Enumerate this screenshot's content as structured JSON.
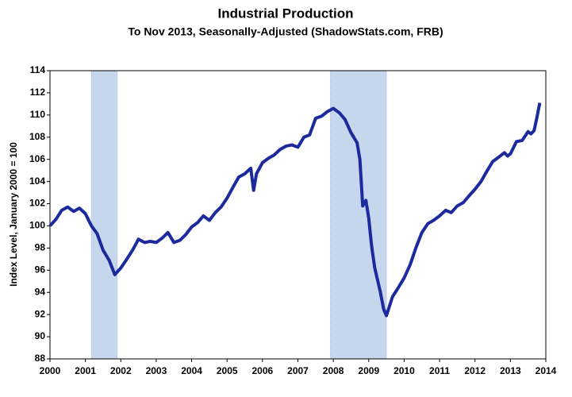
{
  "chart_data": {
    "type": "line",
    "title": "Industrial Production",
    "subtitle": "To Nov 2013, Seasonally-Adjusted (ShadowStats.com, FRB)",
    "y_label": "Index Level, January 2000 = 100",
    "xlim": [
      2000,
      2014
    ],
    "ylim": [
      88,
      114
    ],
    "xticks": [
      2000,
      2001,
      2002,
      2003,
      2004,
      2005,
      2006,
      2007,
      2008,
      2009,
      2010,
      2011,
      2012,
      2013,
      2014
    ],
    "yticks": [
      88,
      90,
      92,
      94,
      96,
      98,
      100,
      102,
      104,
      106,
      108,
      110,
      112,
      114
    ],
    "grid": false,
    "shaded_ranges": [
      [
        2001.17,
        2001.9
      ],
      [
        2007.92,
        2009.5
      ]
    ],
    "shade_color": "#c6d6ec",
    "series": [
      {
        "color": "#1c2a9e",
        "x": [
          2000.0,
          2000.17,
          2000.33,
          2000.5,
          2000.67,
          2000.83,
          2001.0,
          2001.17,
          2001.33,
          2001.5,
          2001.67,
          2001.83,
          2002.0,
          2002.17,
          2002.33,
          2002.5,
          2002.67,
          2002.83,
          2003.0,
          2003.17,
          2003.33,
          2003.5,
          2003.67,
          2003.83,
          2004.0,
          2004.17,
          2004.33,
          2004.5,
          2004.67,
          2004.83,
          2005.0,
          2005.17,
          2005.33,
          2005.5,
          2005.67,
          2005.75,
          2005.83,
          2006.0,
          2006.17,
          2006.33,
          2006.5,
          2006.67,
          2006.83,
          2007.0,
          2007.17,
          2007.33,
          2007.5,
          2007.67,
          2007.83,
          2008.0,
          2008.17,
          2008.33,
          2008.5,
          2008.67,
          2008.75,
          2008.83,
          2008.92,
          2009.0,
          2009.08,
          2009.17,
          2009.33,
          2009.42,
          2009.5,
          2009.58,
          2009.67,
          2009.83,
          2010.0,
          2010.17,
          2010.33,
          2010.5,
          2010.67,
          2010.83,
          2011.0,
          2011.17,
          2011.33,
          2011.5,
          2011.67,
          2011.83,
          2012.0,
          2012.17,
          2012.33,
          2012.5,
          2012.67,
          2012.83,
          2012.92,
          2013.0,
          2013.17,
          2013.33,
          2013.5,
          2013.58,
          2013.67,
          2013.75,
          2013.83
        ],
        "values": [
          100.0,
          100.6,
          101.4,
          101.7,
          101.3,
          101.6,
          101.1,
          100.0,
          99.3,
          97.8,
          96.9,
          95.6,
          96.2,
          97.0,
          97.8,
          98.8,
          98.5,
          98.6,
          98.5,
          98.9,
          99.4,
          98.5,
          98.7,
          99.2,
          99.9,
          100.3,
          100.9,
          100.5,
          101.2,
          101.7,
          102.5,
          103.5,
          104.4,
          104.7,
          105.2,
          103.2,
          104.7,
          105.7,
          106.1,
          106.4,
          106.9,
          107.2,
          107.3,
          107.1,
          108.0,
          108.2,
          109.7,
          109.9,
          110.3,
          110.6,
          110.2,
          109.6,
          108.4,
          107.5,
          106.0,
          101.8,
          102.3,
          100.7,
          98.2,
          96.2,
          94.0,
          92.5,
          91.9,
          92.7,
          93.6,
          94.4,
          95.3,
          96.5,
          98.0,
          99.4,
          100.2,
          100.5,
          100.9,
          101.4,
          101.2,
          101.8,
          102.1,
          102.7,
          103.3,
          104.0,
          104.9,
          105.8,
          106.2,
          106.6,
          106.3,
          106.5,
          107.6,
          107.7,
          108.5,
          108.3,
          108.6,
          109.8,
          111.1
        ]
      }
    ]
  }
}
